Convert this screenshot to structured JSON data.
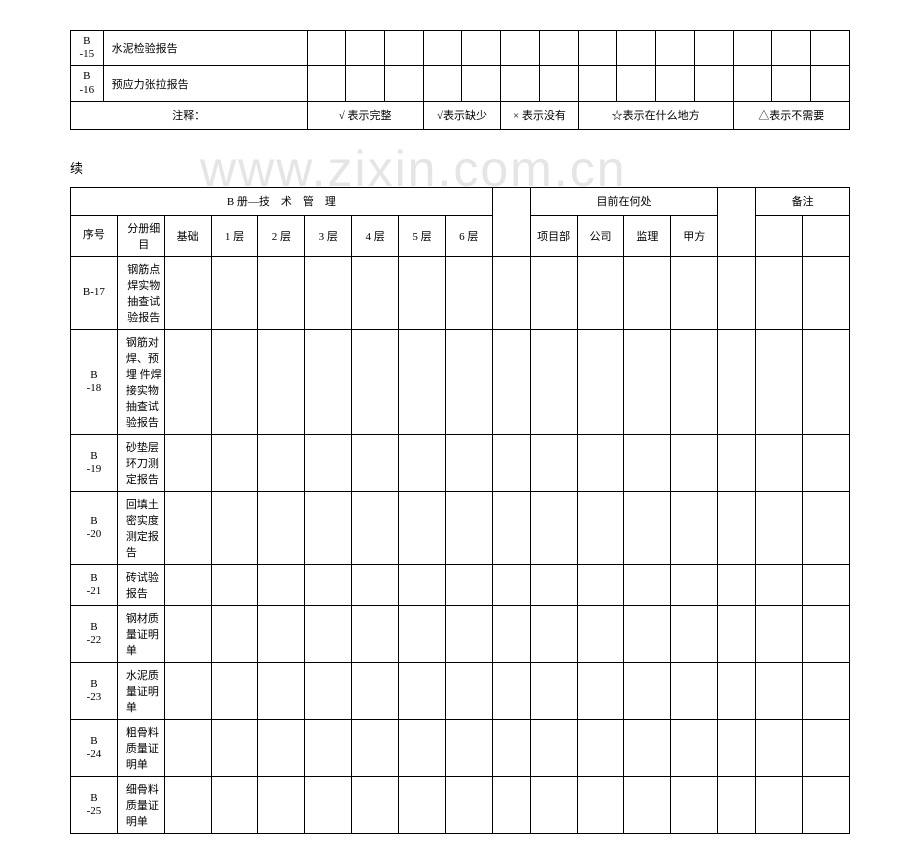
{
  "background_color": "#ffffff",
  "border_color": "#000000",
  "text_color": "#000000",
  "font_family": "SimSun",
  "font_size_body": 11,
  "font_size_continue": 13,
  "watermark_text": "www.zixin.com.cn",
  "watermark_color": "#e5e5e5",
  "table1": {
    "rows": [
      {
        "id_line1": "B",
        "id_line2": "-15",
        "item": "水泥检验报告"
      },
      {
        "id_line1": "B",
        "id_line2": "-16",
        "item": "预应力张拉报告"
      }
    ],
    "data_cols": 14,
    "legend": {
      "label": "注释：",
      "items": [
        "√ 表示完整",
        "√表示缺少",
        "× 表示没有",
        "☆表示在什么地方",
        "△表示不需要"
      ]
    }
  },
  "continue_label": "续",
  "table2": {
    "header1": {
      "section_b": "B 册—技　术　管　理",
      "blank_cols": 1,
      "location_header": "目前在何处",
      "remarks": "备注"
    },
    "header2": {
      "seq": "序号",
      "detail": "分册细目",
      "floors": [
        "基础",
        "1 层",
        "2 层",
        "3 层",
        "4 层",
        "5 层",
        "6 层"
      ],
      "locations": [
        "项目部",
        "公司",
        "监理",
        "甲方"
      ],
      "blank_cols": 2
    },
    "rows": [
      {
        "id_single": "B-17",
        "item": "钢筋点焊实物抽查试验报告",
        "item_align": "center"
      },
      {
        "id_line1": "B",
        "id_line2": "-18",
        "item": "钢筋对焊、预埋 件焊接实物抽查试验报告"
      },
      {
        "id_line1": "B",
        "id_line2": "-19",
        "item": "砂垫层环刀测定报告"
      },
      {
        "id_line1": "B",
        "id_line2": "-20",
        "item": "回填土密实度测定报告"
      },
      {
        "id_line1": "B",
        "id_line2": "-21",
        "item": "砖试验报告"
      },
      {
        "id_line1": "B",
        "id_line2": "-22",
        "item": "钢材质量证明单"
      },
      {
        "id_line1": "B",
        "id_line2": "-23",
        "item": "水泥质量证明单"
      },
      {
        "id_line1": "B",
        "id_line2": "-24",
        "item": "粗骨料质量证明单"
      },
      {
        "id_line1": "B",
        "id_line2": "-25",
        "item": "细骨料质量证明单"
      }
    ]
  }
}
